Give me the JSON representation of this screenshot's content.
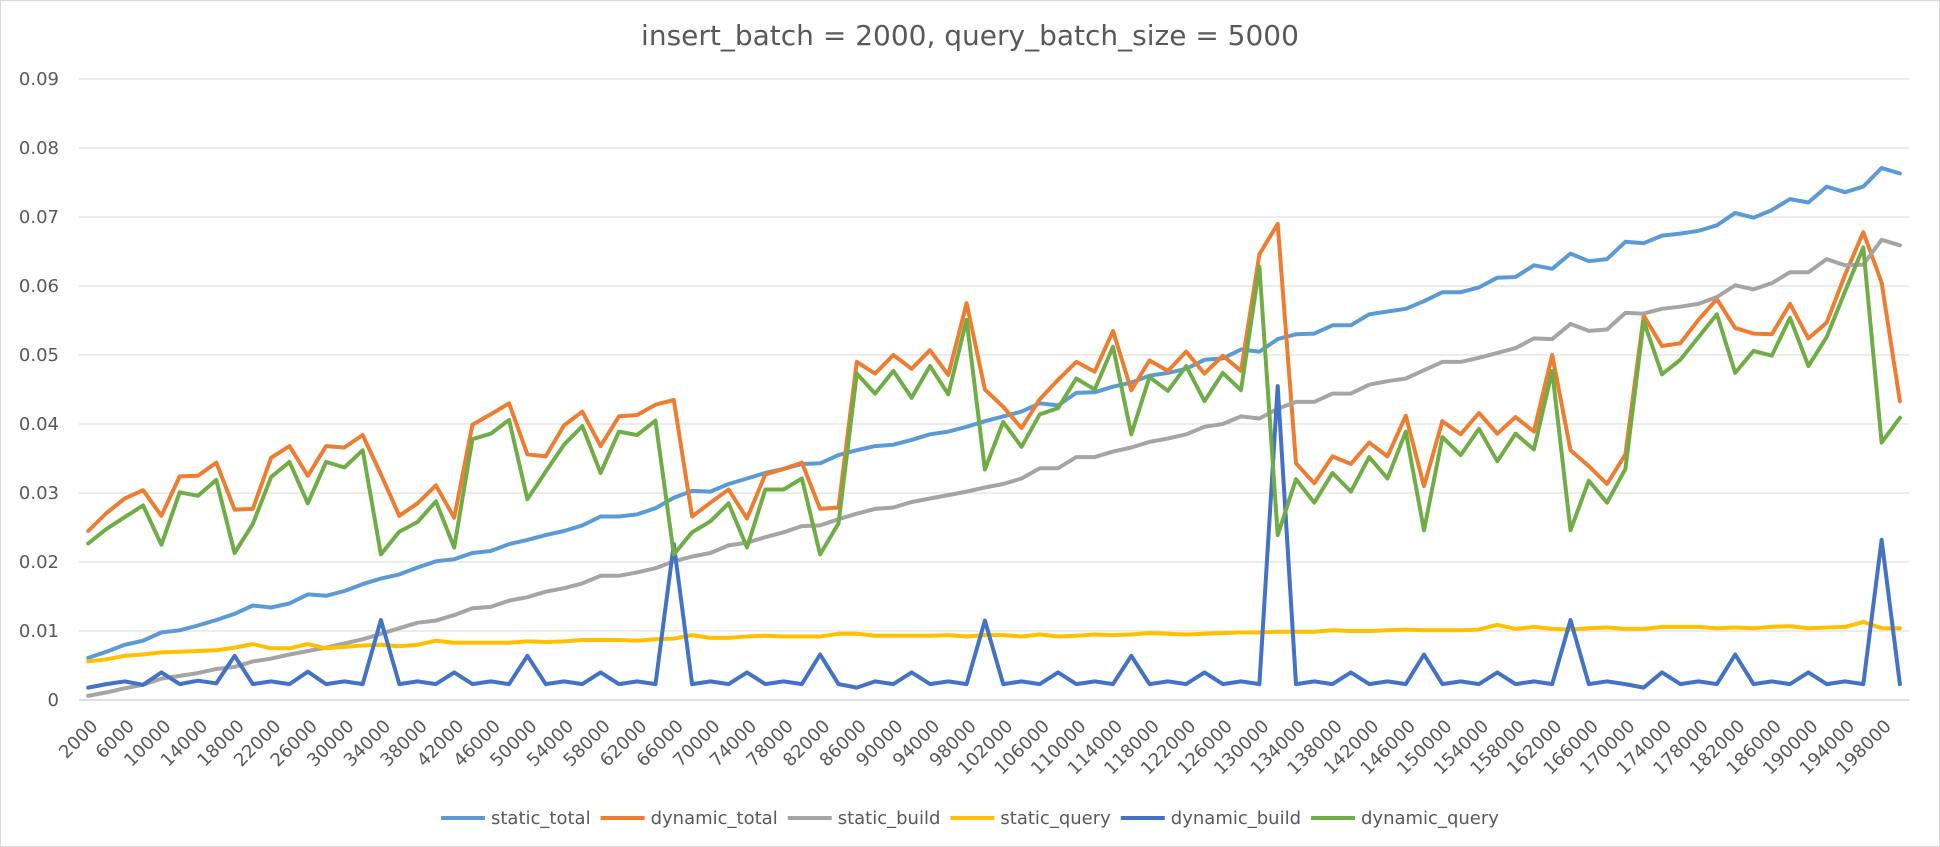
{
  "chart_data": {
    "type": "line",
    "title": "insert_batch = 2000, query_batch_size = 5000",
    "xlabel": "",
    "ylabel": "",
    "ylim": [
      0,
      0.09
    ],
    "y_ticks": [
      "0",
      "0.01",
      "0.02",
      "0.03",
      "0.04",
      "0.05",
      "0.06",
      "0.07",
      "0.08",
      "0.09"
    ],
    "x": [
      2000,
      4000,
      6000,
      8000,
      10000,
      12000,
      14000,
      16000,
      18000,
      20000,
      22000,
      24000,
      26000,
      28000,
      30000,
      32000,
      34000,
      36000,
      38000,
      40000,
      42000,
      44000,
      46000,
      48000,
      50000,
      52000,
      54000,
      56000,
      58000,
      60000,
      62000,
      64000,
      66000,
      68000,
      70000,
      72000,
      74000,
      76000,
      78000,
      80000,
      82000,
      84000,
      86000,
      88000,
      90000,
      92000,
      94000,
      96000,
      98000,
      100000,
      102000,
      104000,
      106000,
      108000,
      110000,
      112000,
      114000,
      116000,
      118000,
      120000,
      122000,
      124000,
      126000,
      128000,
      130000,
      132000,
      134000,
      136000,
      138000,
      140000,
      142000,
      144000,
      146000,
      148000,
      150000,
      152000,
      154000,
      156000,
      158000,
      160000,
      162000,
      164000,
      166000,
      168000,
      170000,
      172000,
      174000,
      176000,
      178000,
      180000,
      182000,
      184000,
      186000,
      188000,
      190000,
      192000,
      194000,
      196000,
      198000,
      200000
    ],
    "x_tick_labels": [
      "2000",
      "6000",
      "10000",
      "14000",
      "18000",
      "22000",
      "26000",
      "30000",
      "34000",
      "38000",
      "42000",
      "46000",
      "50000",
      "54000",
      "58000",
      "62000",
      "66000",
      "70000",
      "74000",
      "78000",
      "82000",
      "86000",
      "90000",
      "94000",
      "98000",
      "102000",
      "106000",
      "110000",
      "114000",
      "118000",
      "122000",
      "126000",
      "130000",
      "134000",
      "138000",
      "142000",
      "146000",
      "150000",
      "154000",
      "158000",
      "162000",
      "166000",
      "170000",
      "174000",
      "178000",
      "182000",
      "186000",
      "190000",
      "194000",
      "198000"
    ],
    "grid": true,
    "legend_position": "bottom",
    "series": [
      {
        "name": "static_total",
        "color": "#5B9BD5",
        "values": [
          0.0061,
          0.007,
          0.008,
          0.0086,
          0.0098,
          0.0101,
          0.0108,
          0.0116,
          0.0125,
          0.0137,
          0.0134,
          0.014,
          0.0153,
          0.0151,
          0.0158,
          0.0168,
          0.0176,
          0.0182,
          0.0192,
          0.0201,
          0.0204,
          0.0213,
          0.0216,
          0.0226,
          0.0232,
          0.0239,
          0.0245,
          0.0253,
          0.0266,
          0.0266,
          0.0269,
          0.0278,
          0.0293,
          0.0303,
          0.0302,
          0.0313,
          0.0321,
          0.0329,
          0.0335,
          0.0342,
          0.0343,
          0.0355,
          0.0362,
          0.0368,
          0.037,
          0.0377,
          0.0385,
          0.0389,
          0.0396,
          0.0404,
          0.0411,
          0.0418,
          0.043,
          0.0427,
          0.0445,
          0.0446,
          0.0454,
          0.046,
          0.047,
          0.0474,
          0.048,
          0.0493,
          0.0495,
          0.0508,
          0.0505,
          0.0523,
          0.053,
          0.0531,
          0.0543,
          0.0543,
          0.0559,
          0.0563,
          0.0567,
          0.0578,
          0.0591,
          0.0591,
          0.0598,
          0.0612,
          0.0613,
          0.063,
          0.0625,
          0.0647,
          0.0636,
          0.0639,
          0.0664,
          0.0662,
          0.0673,
          0.0676,
          0.068,
          0.0688,
          0.0706,
          0.0699,
          0.071,
          0.0726,
          0.0721,
          0.0744,
          0.0736,
          0.0744,
          0.0771,
          0.0763
        ]
      },
      {
        "name": "dynamic_total",
        "color": "#ED7D31",
        "values": [
          0.0245,
          0.0271,
          0.0292,
          0.0304,
          0.0267,
          0.0324,
          0.0325,
          0.0344,
          0.0276,
          0.0277,
          0.0351,
          0.0368,
          0.0325,
          0.0368,
          0.0366,
          0.0384,
          0.0327,
          0.0267,
          0.0285,
          0.0311,
          0.0264,
          0.0399,
          0.0414,
          0.043,
          0.0356,
          0.0353,
          0.0398,
          0.0418,
          0.0368,
          0.0411,
          0.0413,
          0.0428,
          0.0435,
          0.0266,
          0.0286,
          0.0305,
          0.0263,
          0.0327,
          0.0335,
          0.0344,
          0.0277,
          0.0279,
          0.049,
          0.0473,
          0.05,
          0.048,
          0.0507,
          0.0471,
          0.0575,
          0.045,
          0.0425,
          0.0394,
          0.0436,
          0.0464,
          0.049,
          0.0476,
          0.0535,
          0.0449,
          0.0492,
          0.0477,
          0.0505,
          0.0473,
          0.0499,
          0.0477,
          0.0646,
          0.069,
          0.0343,
          0.0314,
          0.0353,
          0.0342,
          0.0373,
          0.0353,
          0.0412,
          0.031,
          0.0404,
          0.0385,
          0.0416,
          0.0386,
          0.041,
          0.0389,
          0.05,
          0.0362,
          0.0339,
          0.0313,
          0.0356,
          0.0557,
          0.0513,
          0.0517,
          0.0551,
          0.0581,
          0.0539,
          0.0531,
          0.053,
          0.0574,
          0.0524,
          0.0547,
          0.0616,
          0.0678,
          0.0605,
          0.0433
        ]
      },
      {
        "name": "static_build",
        "color": "#A5A5A5",
        "values": [
          0.0006,
          0.0011,
          0.0017,
          0.0022,
          0.0031,
          0.0035,
          0.0039,
          0.0045,
          0.0048,
          0.0056,
          0.006,
          0.0066,
          0.0071,
          0.0076,
          0.0082,
          0.0088,
          0.0096,
          0.0104,
          0.0112,
          0.0115,
          0.0123,
          0.0133,
          0.0135,
          0.0144,
          0.0149,
          0.0157,
          0.0162,
          0.0169,
          0.018,
          0.018,
          0.0185,
          0.0191,
          0.0201,
          0.0208,
          0.0213,
          0.0224,
          0.0228,
          0.0236,
          0.0243,
          0.0252,
          0.0253,
          0.0262,
          0.027,
          0.0277,
          0.0279,
          0.0287,
          0.0292,
          0.0297,
          0.0302,
          0.0308,
          0.0313,
          0.0321,
          0.0336,
          0.0336,
          0.0352,
          0.0352,
          0.036,
          0.0366,
          0.0374,
          0.0379,
          0.0385,
          0.0396,
          0.04,
          0.0411,
          0.0408,
          0.0422,
          0.0432,
          0.0432,
          0.0444,
          0.0444,
          0.0457,
          0.0462,
          0.0466,
          0.0478,
          0.049,
          0.049,
          0.0496,
          0.0503,
          0.051,
          0.0524,
          0.0523,
          0.0545,
          0.0535,
          0.0537,
          0.0561,
          0.056,
          0.0567,
          0.057,
          0.0574,
          0.0584,
          0.0601,
          0.0595,
          0.0604,
          0.062,
          0.062,
          0.0639,
          0.063,
          0.0631,
          0.0667,
          0.0659
        ]
      },
      {
        "name": "static_query",
        "color": "#FFC000",
        "values": [
          0.0056,
          0.0059,
          0.0064,
          0.0066,
          0.0069,
          0.007,
          0.0071,
          0.0072,
          0.0076,
          0.0081,
          0.0075,
          0.0075,
          0.0081,
          0.0075,
          0.0077,
          0.0079,
          0.008,
          0.0078,
          0.008,
          0.0086,
          0.0083,
          0.0083,
          0.0083,
          0.0083,
          0.0085,
          0.0084,
          0.0085,
          0.0087,
          0.0087,
          0.0087,
          0.0086,
          0.0088,
          0.0089,
          0.0094,
          0.009,
          0.009,
          0.0092,
          0.0093,
          0.0092,
          0.0092,
          0.0092,
          0.0096,
          0.0096,
          0.0093,
          0.0093,
          0.0093,
          0.0093,
          0.0094,
          0.0092,
          0.0094,
          0.0094,
          0.0092,
          0.0095,
          0.0092,
          0.0093,
          0.0095,
          0.0094,
          0.0095,
          0.0097,
          0.0096,
          0.0095,
          0.0096,
          0.0097,
          0.0098,
          0.0098,
          0.0099,
          0.0099,
          0.0099,
          0.0101,
          0.01,
          0.01,
          0.0101,
          0.0102,
          0.0101,
          0.0101,
          0.0101,
          0.0102,
          0.0109,
          0.0103,
          0.0106,
          0.0103,
          0.0102,
          0.0104,
          0.0105,
          0.0103,
          0.0103,
          0.0106,
          0.0106,
          0.0106,
          0.0104,
          0.0105,
          0.0104,
          0.0106,
          0.0107,
          0.0104,
          0.0105,
          0.0106,
          0.0113,
          0.0104,
          0.0104
        ]
      },
      {
        "name": "dynamic_build",
        "color": "#4472C4",
        "values": [
          0.0018,
          0.0023,
          0.0027,
          0.0022,
          0.004,
          0.0023,
          0.0028,
          0.0024,
          0.0064,
          0.0023,
          0.0027,
          0.0023,
          0.0041,
          0.0023,
          0.0027,
          0.0023,
          0.0116,
          0.0023,
          0.0027,
          0.0023,
          0.004,
          0.0023,
          0.0027,
          0.0023,
          0.0064,
          0.0023,
          0.0027,
          0.0023,
          0.004,
          0.0023,
          0.0027,
          0.0023,
          0.0226,
          0.0023,
          0.0027,
          0.0023,
          0.004,
          0.0023,
          0.0027,
          0.0023,
          0.0066,
          0.0023,
          0.0018,
          0.0027,
          0.0023,
          0.004,
          0.0023,
          0.0027,
          0.0023,
          0.0115,
          0.0023,
          0.0027,
          0.0023,
          0.004,
          0.0023,
          0.0027,
          0.0023,
          0.0064,
          0.0023,
          0.0027,
          0.0023,
          0.004,
          0.0023,
          0.0027,
          0.0023,
          0.0455,
          0.0023,
          0.0027,
          0.0023,
          0.004,
          0.0023,
          0.0027,
          0.0023,
          0.0066,
          0.0023,
          0.0027,
          0.0023,
          0.004,
          0.0023,
          0.0027,
          0.0023,
          0.0116,
          0.0023,
          0.0027,
          0.0023,
          0.0018,
          0.004,
          0.0023,
          0.0027,
          0.0023,
          0.0066,
          0.0023,
          0.0027,
          0.0023,
          0.004,
          0.0023,
          0.0027,
          0.0023,
          0.0232,
          0.0023
        ]
      },
      {
        "name": "dynamic_query",
        "color": "#70AD47",
        "values": [
          0.0227,
          0.0248,
          0.0265,
          0.0282,
          0.0225,
          0.0301,
          0.0296,
          0.0319,
          0.0213,
          0.0255,
          0.0323,
          0.0345,
          0.0285,
          0.0345,
          0.0337,
          0.0362,
          0.0211,
          0.0244,
          0.0258,
          0.0288,
          0.0221,
          0.0378,
          0.0386,
          0.0406,
          0.0291,
          0.0331,
          0.037,
          0.0397,
          0.0329,
          0.0389,
          0.0384,
          0.0405,
          0.0211,
          0.0243,
          0.0259,
          0.0285,
          0.0221,
          0.0305,
          0.0305,
          0.0321,
          0.0211,
          0.0256,
          0.0473,
          0.0444,
          0.0477,
          0.0438,
          0.0484,
          0.0443,
          0.0551,
          0.0334,
          0.0403,
          0.0367,
          0.0414,
          0.0423,
          0.0466,
          0.045,
          0.0512,
          0.0385,
          0.0468,
          0.0448,
          0.0484,
          0.0433,
          0.0474,
          0.0449,
          0.0628,
          0.0239,
          0.032,
          0.0286,
          0.0329,
          0.0302,
          0.0352,
          0.0321,
          0.0389,
          0.0246,
          0.0381,
          0.0355,
          0.0393,
          0.0346,
          0.0386,
          0.0363,
          0.0477,
          0.0246,
          0.0318,
          0.0286,
          0.0335,
          0.0549,
          0.0472,
          0.0493,
          0.0526,
          0.0559,
          0.0474,
          0.0506,
          0.0499,
          0.0554,
          0.0484,
          0.0526,
          0.0592,
          0.0656,
          0.0373,
          0.0409
        ]
      }
    ]
  }
}
